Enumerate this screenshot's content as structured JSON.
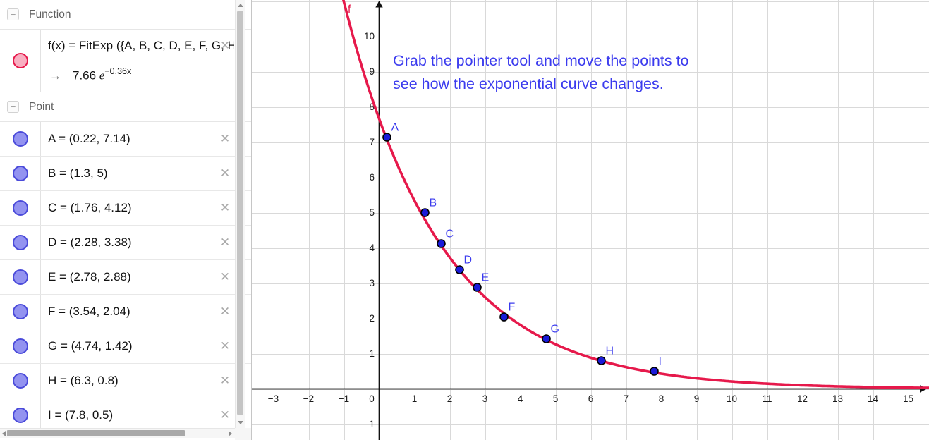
{
  "algebra_panel": {
    "collapse_icon": "−",
    "delete_icon": "✕",
    "sections": {
      "function": {
        "label": "Function"
      },
      "point": {
        "label": "Point"
      }
    },
    "function_row": {
      "definition": "f(x) = FitExp ({A, B, C, D, E, F, G, H,",
      "arrow_icon": "→",
      "result_coef": "7.66 ",
      "result_base": "e",
      "result_exp": "−0.36x",
      "toggle_fill": "#f8afc1",
      "toggle_border": "#e6194b"
    },
    "point_rows": [
      {
        "label": "A = (0.22, 7.14)"
      },
      {
        "label": "B = (1.3, 5)"
      },
      {
        "label": "C = (1.76, 4.12)"
      },
      {
        "label": "D = (2.28, 3.38)"
      },
      {
        "label": "E = (2.78, 2.88)"
      },
      {
        "label": "F = (3.54, 2.04)"
      },
      {
        "label": "G = (4.74, 1.42)"
      },
      {
        "label": "H = (6.3, 0.8)"
      },
      {
        "label": "I = (7.8, 0.5)"
      }
    ],
    "point_toggle_fill": "#9393f0",
    "point_toggle_border": "#4a4ada"
  },
  "chart_data": {
    "type": "scatter",
    "points": [
      {
        "name": "A",
        "x": 0.22,
        "y": 7.14
      },
      {
        "name": "B",
        "x": 1.3,
        "y": 5
      },
      {
        "name": "C",
        "x": 1.76,
        "y": 4.12
      },
      {
        "name": "D",
        "x": 2.28,
        "y": 3.38
      },
      {
        "name": "E",
        "x": 2.78,
        "y": 2.88
      },
      {
        "name": "F",
        "x": 3.54,
        "y": 2.04
      },
      {
        "name": "G",
        "x": 4.74,
        "y": 1.42
      },
      {
        "name": "H",
        "x": 6.3,
        "y": 0.8
      },
      {
        "name": "I",
        "x": 7.8,
        "y": 0.5
      }
    ],
    "fit_curve": {
      "label": "f",
      "model": "a·e^(b·x)",
      "a": 7.66,
      "b": -0.36,
      "display": "7.66 e^(−0.36x)",
      "color": "#e6194b"
    },
    "xlim": [
      -3.61,
      15.59
    ],
    "ylim": [
      -1.45,
      11.05
    ],
    "x_tick_labels": [
      -3,
      -2,
      -1,
      0,
      1,
      2,
      3,
      4,
      5,
      6,
      7,
      8,
      9,
      10,
      11,
      12,
      13,
      14,
      15
    ],
    "y_tick_labels": [
      -1,
      1,
      2,
      3,
      4,
      5,
      6,
      7,
      8,
      9,
      10
    ],
    "grid": true,
    "grid_color": "#d9d9d9",
    "axis_color": "#111111",
    "point_fill": "#1a1ad9",
    "point_stroke": "#000000",
    "label_color": "#3b3bee",
    "annotation": {
      "lines": [
        "Grab the pointer tool and move the points to",
        "see how the exponential curve changes."
      ],
      "color": "#3b3bee"
    }
  }
}
